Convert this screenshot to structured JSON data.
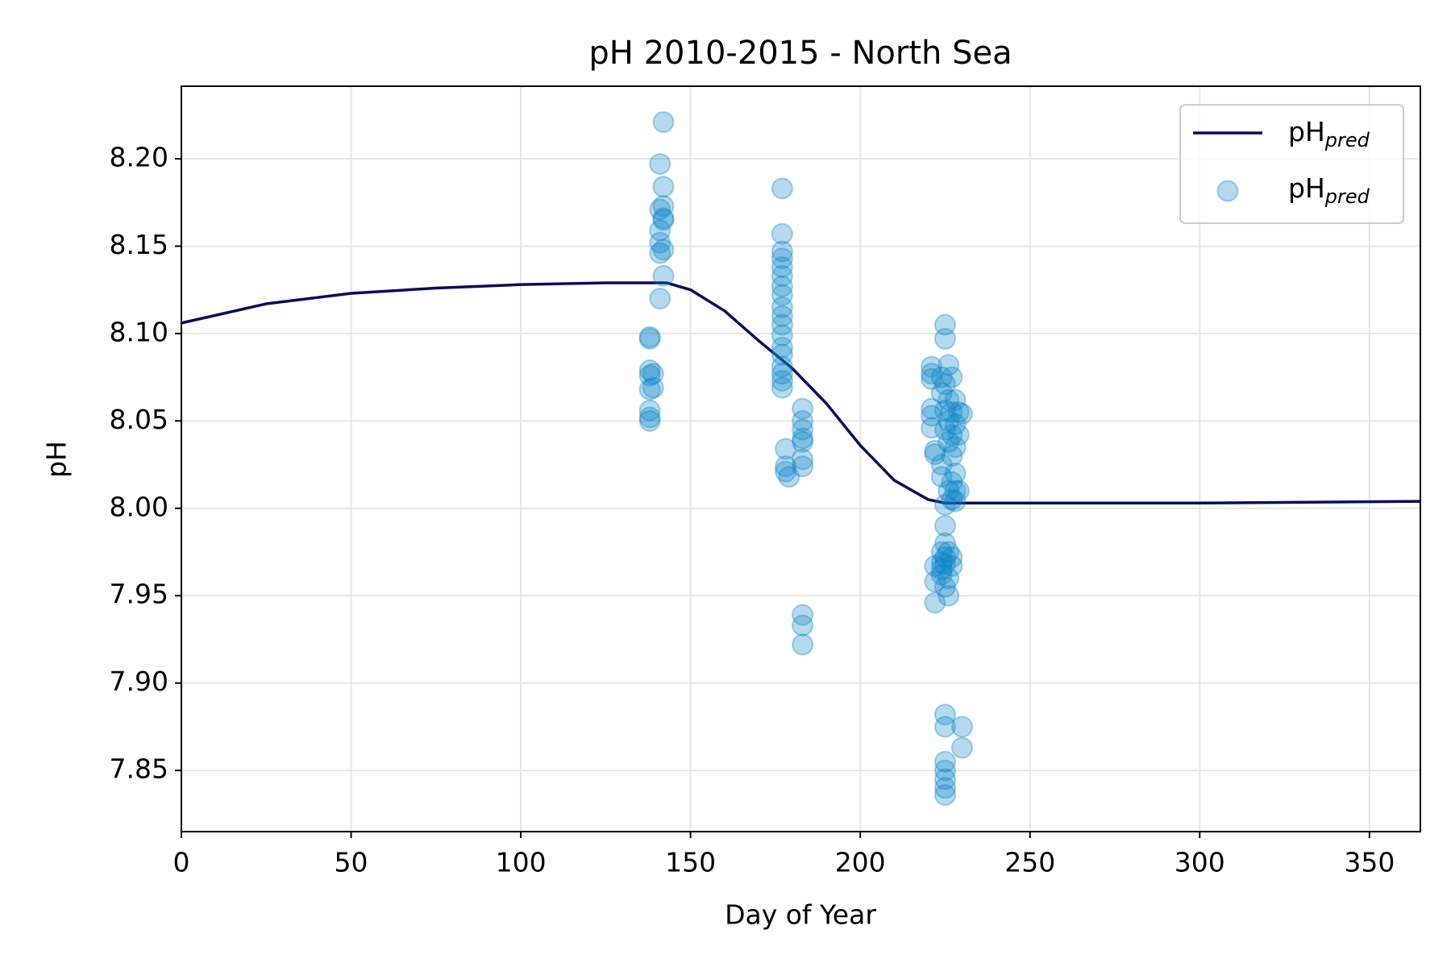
{
  "chart_data": {
    "type": "combo",
    "title": "pH 2010-2015 - North Sea",
    "xlabel": "Day of Year",
    "ylabel": "pH",
    "xlim": [
      0,
      365
    ],
    "ylim": [
      7.815,
      8.2415
    ],
    "xticks": [
      0,
      50,
      100,
      150,
      200,
      250,
      300,
      350
    ],
    "yticks": [
      7.85,
      {
        "value": 7.9,
        "label": "7.90"
      },
      7.95,
      {
        "value": 8.0,
        "label": "8.00"
      },
      8.05,
      {
        "value": 8.1,
        "label": "8.10"
      },
      8.15,
      {
        "value": 8.2,
        "label": "8.20"
      }
    ],
    "grid": true,
    "legend": "upper right",
    "series": [
      {
        "type": "line",
        "name": "pH",
        "name_sub": "pred",
        "color": "#0b0b5e",
        "x": [
          0,
          25,
          50,
          75,
          100,
          125,
          143,
          150,
          160,
          170,
          180,
          190,
          200,
          210,
          220,
          225,
          250,
          300,
          365
        ],
        "values": [
          8.106,
          8.117,
          8.123,
          8.126,
          8.128,
          8.129,
          8.129,
          8.125,
          8.113,
          8.096,
          8.08,
          8.06,
          8.036,
          8.016,
          8.005,
          8.003,
          8.003,
          8.003,
          8.004
        ]
      },
      {
        "type": "scatter",
        "name": "pH",
        "name_sub": "pred",
        "color": "#0a84c8",
        "x": [
          138,
          138,
          138,
          138,
          138,
          138,
          138,
          138,
          139,
          139,
          141,
          141,
          141,
          141,
          141,
          141,
          142,
          142,
          142,
          142,
          142,
          142,
          142,
          177,
          177,
          177,
          177,
          177,
          177,
          177,
          177,
          177,
          177,
          177,
          177,
          177,
          177,
          177,
          177,
          177,
          177,
          178,
          178,
          178,
          179,
          183,
          183,
          183,
          183,
          183,
          183,
          183,
          183,
          183,
          183,
          221,
          221,
          221,
          221,
          221,
          221,
          222,
          222,
          222,
          222,
          222,
          224,
          224,
          224,
          224,
          224,
          224,
          224,
          224,
          225,
          225,
          225,
          225,
          225,
          225,
          225,
          225,
          225,
          225,
          225,
          225,
          225,
          225,
          225,
          225,
          225,
          225,
          226,
          226,
          226,
          226,
          226,
          226,
          226,
          226,
          227,
          227,
          227,
          227,
          227,
          227,
          227,
          227,
          228,
          228,
          228,
          228,
          228,
          228,
          229,
          229,
          229,
          230,
          230,
          230
        ],
        "values": [
          8.098,
          8.097,
          8.079,
          8.076,
          8.068,
          8.056,
          8.052,
          8.05,
          8.077,
          8.069,
          8.197,
          8.171,
          8.159,
          8.152,
          8.146,
          8.12,
          8.221,
          8.184,
          8.173,
          8.166,
          8.165,
          8.148,
          8.133,
          8.183,
          8.157,
          8.147,
          8.143,
          8.138,
          8.133,
          8.127,
          8.122,
          8.115,
          8.11,
          8.105,
          8.099,
          8.092,
          8.088,
          8.081,
          8.077,
          8.073,
          8.069,
          8.034,
          8.024,
          8.021,
          8.018,
          8.057,
          8.05,
          8.045,
          8.04,
          8.038,
          8.028,
          8.024,
          7.939,
          7.933,
          7.922,
          8.081,
          8.077,
          8.074,
          8.057,
          8.053,
          8.046,
          8.033,
          8.031,
          7.967,
          7.958,
          7.946,
          8.075,
          8.066,
          8.025,
          8.018,
          7.975,
          7.969,
          7.965,
          7.962,
          8.105,
          8.097,
          8.071,
          8.056,
          8.045,
          8.002,
          7.99,
          7.98,
          7.972,
          7.968,
          7.955,
          7.882,
          7.875,
          7.855,
          7.85,
          7.845,
          7.84,
          7.836,
          8.082,
          8.062,
          8.05,
          8.038,
          8.01,
          7.975,
          7.96,
          7.95,
          8.075,
          8.055,
          8.042,
          8.03,
          8.015,
          8.005,
          7.972,
          7.967,
          8.062,
          8.048,
          8.035,
          8.02,
          8.01,
          8.004,
          8.055,
          8.042,
          8.01,
          8.054,
          7.875,
          7.863
        ]
      }
    ]
  }
}
